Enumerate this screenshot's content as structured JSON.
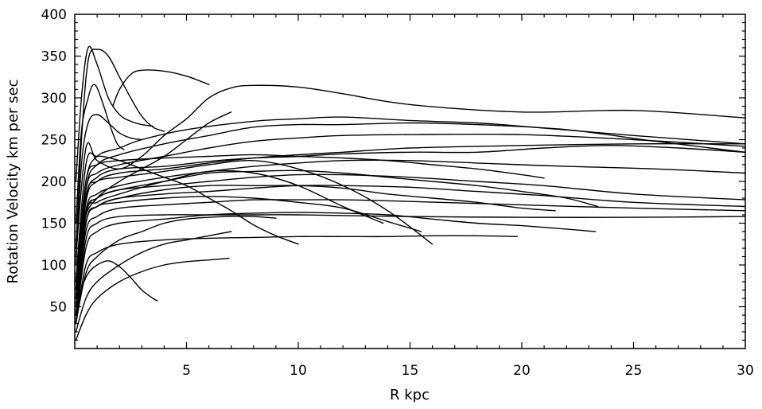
{
  "chart_data": {
    "type": "line",
    "xlabel": "R  kpc",
    "ylabel": "Rotation Velocity km per sec",
    "xlim": [
      0,
      30
    ],
    "ylim": [
      0,
      400
    ],
    "x_ticks": [
      "5",
      "10",
      "15",
      "20",
      "25",
      "30"
    ],
    "y_ticks": [
      "50",
      "100",
      "150",
      "200",
      "250",
      "300",
      "350",
      "400"
    ],
    "grid": false,
    "legend": "none",
    "line_color": "#000000",
    "series": [
      {
        "x": [
          0.05,
          0.3,
          0.6,
          1,
          1.5,
          2,
          2.5,
          3,
          3.5,
          4
        ],
        "values": [
          120,
          250,
          345,
          358,
          350,
          325,
          300,
          278,
          265,
          260
        ]
      },
      {
        "x": [
          0.05,
          0.3,
          0.6,
          0.8,
          1,
          1.3,
          1.6,
          1.9,
          2.2
        ],
        "values": [
          150,
          260,
          300,
          315,
          312,
          290,
          265,
          245,
          238
        ]
      },
      {
        "x": [
          1.7,
          2,
          2.5,
          3,
          4,
          5,
          6
        ],
        "values": [
          290,
          310,
          328,
          333,
          332,
          326,
          316
        ]
      },
      {
        "x": [
          0.05,
          0.5,
          1,
          2,
          3,
          4,
          5,
          6,
          7,
          8,
          10,
          12,
          15,
          20,
          25,
          30
        ],
        "values": [
          110,
          240,
          225,
          215,
          230,
          255,
          275,
          300,
          312,
          315,
          313,
          305,
          292,
          283,
          285,
          276
        ]
      },
      {
        "x": [
          0.05,
          0.4,
          1,
          2,
          3,
          4,
          5,
          6,
          7
        ],
        "values": [
          60,
          150,
          180,
          200,
          215,
          230,
          250,
          270,
          283
        ]
      },
      {
        "x": [
          0.05,
          0.5,
          1,
          2,
          3,
          5,
          8,
          10,
          12,
          15,
          18,
          20,
          25,
          30
        ],
        "values": [
          80,
          200,
          230,
          240,
          250,
          262,
          272,
          275,
          277,
          273,
          270,
          266,
          255,
          245
        ]
      },
      {
        "x": [
          0.05,
          0.5,
          1,
          2,
          4,
          6,
          8,
          10,
          12,
          15,
          18,
          22,
          26,
          30
        ],
        "values": [
          60,
          190,
          220,
          232,
          245,
          255,
          265,
          268,
          268,
          270,
          268,
          262,
          248,
          235
        ]
      },
      {
        "x": [
          0.05,
          0.5,
          1,
          2,
          4,
          6,
          8,
          10,
          12,
          15,
          20,
          25,
          30
        ],
        "values": [
          70,
          190,
          210,
          220,
          230,
          240,
          248,
          252,
          255,
          256,
          256,
          250,
          242
        ]
      },
      {
        "x": [
          0.05,
          0.5,
          1,
          2,
          4,
          6,
          8,
          10,
          12,
          15,
          20,
          25,
          30
        ],
        "values": [
          50,
          175,
          200,
          210,
          215,
          222,
          228,
          232,
          235,
          240,
          243,
          245,
          245
        ]
      },
      {
        "x": [
          0.05,
          0.5,
          1,
          2,
          4,
          6,
          8,
          10,
          12,
          15,
          18,
          21,
          24,
          27,
          30
        ],
        "values": [
          60,
          180,
          205,
          215,
          218,
          224,
          228,
          230,
          233,
          235,
          235,
          240,
          243,
          240,
          235
        ]
      },
      {
        "x": [
          0.05,
          0.5,
          1,
          2,
          4,
          6,
          8,
          10,
          12,
          15,
          18,
          22,
          26,
          30
        ],
        "values": [
          50,
          165,
          185,
          195,
          205,
          212,
          218,
          222,
          225,
          225,
          222,
          218,
          215,
          210
        ]
      },
      {
        "x": [
          0.05,
          0.5,
          1,
          2,
          4,
          6,
          8,
          10,
          12,
          15,
          18,
          21,
          25,
          30
        ],
        "values": [
          50,
          160,
          180,
          190,
          195,
          200,
          205,
          208,
          208,
          205,
          200,
          195,
          185,
          178
        ]
      },
      {
        "x": [
          0.05,
          0.5,
          1,
          2,
          4,
          6,
          8,
          10,
          12,
          15,
          18,
          21,
          25,
          30
        ],
        "values": [
          40,
          150,
          170,
          180,
          185,
          188,
          192,
          195,
          195,
          193,
          188,
          183,
          175,
          170
        ]
      },
      {
        "x": [
          0.05,
          0.5,
          1,
          2,
          4,
          6,
          8,
          10,
          12,
          15,
          20,
          25,
          30
        ],
        "values": [
          40,
          140,
          158,
          168,
          172,
          175,
          178,
          178,
          178,
          176,
          172,
          168,
          165
        ]
      },
      {
        "x": [
          0.05,
          0.5,
          1,
          2,
          4,
          6,
          8,
          10,
          15,
          20,
          25,
          30
        ],
        "values": [
          30,
          130,
          150,
          158,
          160,
          160,
          160,
          160,
          158,
          157,
          157,
          158
        ]
      },
      {
        "x": [
          0.05,
          0.5,
          1,
          2,
          4,
          6,
          8,
          10,
          12,
          14,
          16,
          18,
          20,
          21
        ],
        "values": [
          70,
          200,
          220,
          225,
          228,
          230,
          232,
          230,
          228,
          225,
          220,
          215,
          208,
          204
        ]
      },
      {
        "x": [
          0.05,
          0.5,
          1,
          2,
          4,
          6,
          8,
          10,
          12,
          14,
          16,
          18,
          20,
          22,
          23.4
        ],
        "values": [
          40,
          160,
          180,
          190,
          200,
          210,
          212,
          213,
          210,
          205,
          200,
          195,
          188,
          180,
          170
        ]
      },
      {
        "x": [
          0.05,
          0.5,
          1,
          2,
          4,
          6,
          8,
          10,
          12,
          14,
          16,
          18,
          20,
          21.5
        ],
        "values": [
          40,
          150,
          170,
          180,
          190,
          195,
          195,
          195,
          192,
          185,
          180,
          175,
          168,
          165
        ]
      },
      {
        "x": [
          0.05,
          0.5,
          1,
          2,
          4,
          6,
          8,
          10,
          12,
          14,
          16,
          18,
          20,
          22,
          23.3
        ],
        "values": [
          30,
          120,
          140,
          150,
          155,
          160,
          162,
          163,
          162,
          160,
          155,
          150,
          147,
          143,
          140
        ]
      },
      {
        "x": [
          0.05,
          0.5,
          1,
          2,
          4,
          6,
          8,
          10,
          12,
          14,
          16,
          18,
          19.8
        ],
        "values": [
          30,
          100,
          115,
          125,
          130,
          132,
          133,
          134,
          134,
          134,
          135,
          135,
          134
        ]
      },
      {
        "x": [
          0.05,
          0.5,
          1,
          2,
          4,
          6,
          8,
          10,
          12,
          14,
          16
        ],
        "values": [
          40,
          180,
          200,
          205,
          212,
          220,
          225,
          215,
          195,
          165,
          125
        ]
      },
      {
        "x": [
          0.05,
          0.5,
          1,
          2,
          4,
          6,
          8,
          10,
          12,
          14,
          15.5
        ],
        "values": [
          30,
          150,
          170,
          175,
          180,
          182,
          180,
          175,
          168,
          152,
          140
        ]
      },
      {
        "x": [
          0.05,
          0.5,
          1,
          2,
          3,
          4,
          5,
          6,
          7,
          8,
          9,
          10
        ],
        "values": [
          80,
          220,
          230,
          225,
          215,
          205,
          195,
          180,
          165,
          148,
          135,
          125
        ]
      },
      {
        "x": [
          0.05,
          0.5,
          1,
          2,
          4,
          6,
          8,
          10,
          12,
          13.8
        ],
        "values": [
          40,
          160,
          175,
          185,
          200,
          212,
          210,
          195,
          170,
          150
        ]
      },
      {
        "x": [
          0.05,
          0.3,
          0.6,
          1,
          1.5,
          2,
          2.5,
          3,
          3.5,
          3.7
        ],
        "values": [
          30,
          70,
          90,
          100,
          105,
          98,
          85,
          70,
          60,
          57
        ]
      },
      {
        "x": [
          0.05,
          0.5,
          1,
          2,
          3,
          4,
          5,
          6,
          6.9
        ],
        "values": [
          10,
          40,
          60,
          80,
          92,
          100,
          104,
          106,
          108
        ]
      },
      {
        "x": [
          0.05,
          0.5,
          1,
          2,
          3,
          4,
          5,
          6,
          7
        ],
        "values": [
          20,
          60,
          80,
          100,
          115,
          125,
          130,
          135,
          140
        ]
      },
      {
        "x": [
          0.05,
          0.5,
          1,
          2,
          3,
          4,
          5,
          6,
          7,
          8,
          9
        ],
        "values": [
          30,
          90,
          110,
          130,
          140,
          150,
          155,
          157,
          158,
          158,
          156
        ]
      },
      {
        "x": [
          0.05,
          0.3,
          0.6,
          1,
          1.5,
          2,
          2.5,
          3,
          3.5
        ],
        "values": [
          200,
          300,
          360,
          340,
          300,
          280,
          272,
          268,
          266
        ]
      },
      {
        "x": [
          0.05,
          0.3,
          0.6,
          1,
          1.5,
          2,
          2.5,
          3
        ],
        "values": [
          100,
          220,
          270,
          280,
          270,
          258,
          252,
          250
        ]
      }
    ]
  }
}
